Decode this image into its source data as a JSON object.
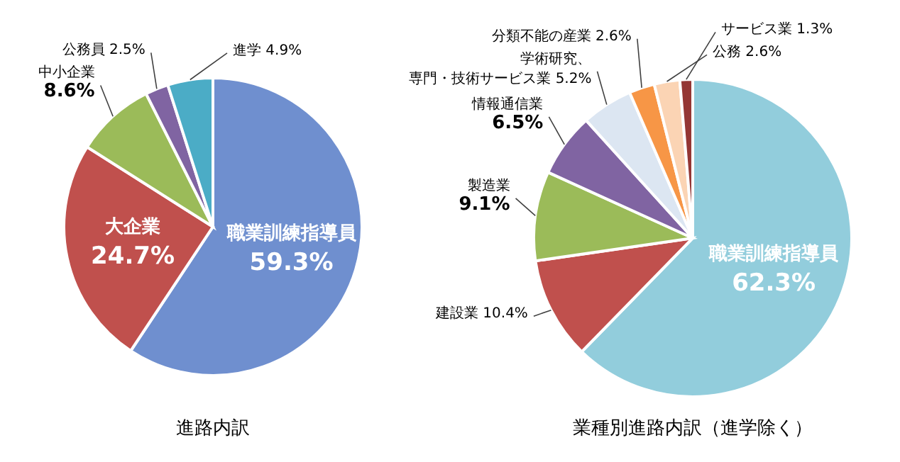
{
  "chart_data": [
    {
      "type": "pie",
      "title": "進路内訳",
      "categories": [
        "職業訓練指導員",
        "大企業",
        "中小企業",
        "公務員",
        "進学"
      ],
      "values": [
        59.3,
        24.7,
        8.6,
        2.5,
        4.9
      ],
      "colors": [
        "#6f8fcf",
        "#c0504d",
        "#9bbb59",
        "#8064a2",
        "#4bacc6"
      ],
      "value_labels": [
        "59.3%",
        "24.7%",
        "8.6%",
        "2.5%",
        "4.9%"
      ]
    },
    {
      "type": "pie",
      "title": "業種別進路内訳（進学除く）",
      "categories": [
        "職業訓練指導員",
        "建設業",
        "製造業",
        "情報通信業",
        "学術研究、専門・技術サービス業",
        "分類不能の産業",
        "公務",
        "サービス業"
      ],
      "values": [
        62.3,
        10.4,
        9.1,
        6.5,
        5.2,
        2.6,
        2.6,
        1.3
      ],
      "colors": [
        "#92cddc",
        "#c0504d",
        "#9bbb59",
        "#8064a2",
        "#dce6f2",
        "#f79646",
        "#fbd4b4",
        "#943634"
      ],
      "value_labels": [
        "62.3%",
        "10.4%",
        "9.1%",
        "6.5%",
        "5.2%",
        "2.6%",
        "2.6%",
        "1.3%"
      ]
    }
  ]
}
